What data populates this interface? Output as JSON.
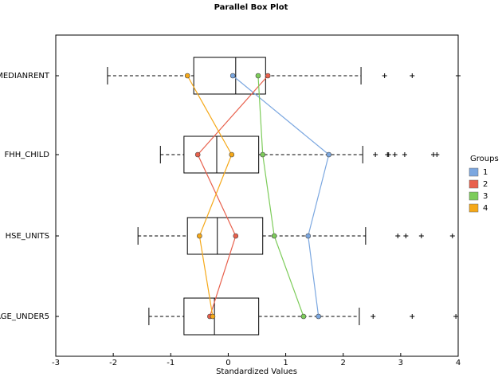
{
  "chart_data": {
    "type": "boxplot",
    "title": "Parallel Box Plot",
    "x_label": "Standardized Values",
    "categories": [
      "MEDIANRENT",
      "FHH_CHILD",
      "HSE_UNITS",
      "AGE_UNDER5"
    ],
    "boxes": [
      {
        "whislo": -2.1,
        "q1": -0.6,
        "med": 0.13,
        "q3": 0.65,
        "whishi": 2.31,
        "fliers": [
          2.72,
          3.2,
          4.0
        ]
      },
      {
        "whislo": -1.18,
        "q1": -0.77,
        "med": -0.2,
        "q3": 0.53,
        "whishi": 2.34,
        "fliers": [
          2.56,
          2.77,
          2.79,
          2.9,
          3.07,
          3.57,
          3.63
        ]
      },
      {
        "whislo": -1.57,
        "q1": -0.71,
        "med": -0.19,
        "q3": 0.6,
        "whishi": 2.39,
        "fliers": [
          2.95,
          3.09,
          3.36,
          3.9
        ]
      },
      {
        "whislo": -1.38,
        "q1": -0.77,
        "med": -0.24,
        "q3": 0.53,
        "whishi": 2.28,
        "fliers": [
          2.52,
          3.2,
          3.96
        ]
      }
    ],
    "legend_title": "Groups",
    "series": [
      {
        "name": "1",
        "color": "#7ba7e0",
        "values": [
          0.08,
          1.75,
          1.39,
          1.57
        ]
      },
      {
        "name": "2",
        "color": "#e8604c",
        "values": [
          0.69,
          -0.53,
          0.13,
          -0.32
        ]
      },
      {
        "name": "3",
        "color": "#7dcc5a",
        "values": [
          0.52,
          0.6,
          0.8,
          1.31
        ]
      },
      {
        "name": "4",
        "color": "#f5a818",
        "values": [
          -0.71,
          0.06,
          -0.5,
          -0.27
        ]
      }
    ],
    "xlim": [
      -3,
      4
    ],
    "xticks": [
      -3,
      -2,
      -1,
      0,
      1,
      2,
      3,
      4
    ]
  }
}
